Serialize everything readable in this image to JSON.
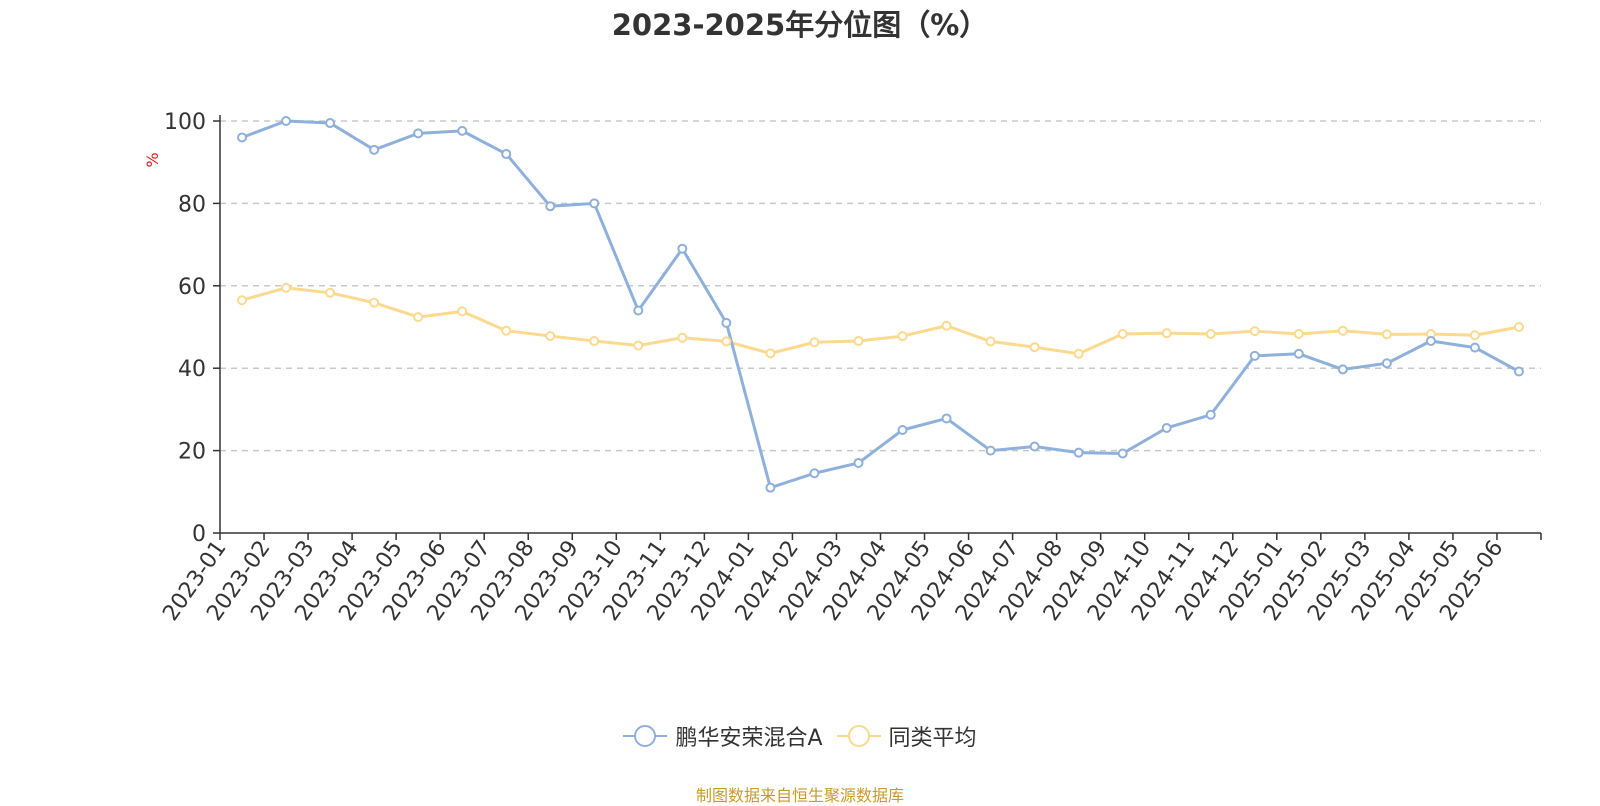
{
  "chart_data": {
    "type": "line",
    "title": "2023-2025年分位图（%）",
    "ylabel": "%",
    "ylim": [
      0,
      100
    ],
    "yticks": [
      0,
      20,
      40,
      60,
      80,
      100
    ],
    "grid": "horizontal dashed",
    "legend_position": "bottom-center",
    "categories": [
      "2023-01",
      "2023-02",
      "2023-03",
      "2023-04",
      "2023-05",
      "2023-06",
      "2023-07",
      "2023-08",
      "2023-09",
      "2023-10",
      "2023-11",
      "2023-12",
      "2024-01",
      "2024-02",
      "2024-03",
      "2024-04",
      "2024-05",
      "2024-06",
      "2024-07",
      "2024-08",
      "2024-09",
      "2024-10",
      "2024-11",
      "2024-12",
      "2025-01",
      "2025-02",
      "2025-03",
      "2025-04",
      "2025-05",
      "2025-06"
    ],
    "series": [
      {
        "name": "鹏华安荣混合A",
        "color": "#8fb0db",
        "values": [
          96,
          100,
          99.5,
          93,
          97,
          97.6,
          92,
          79.3,
          80,
          54,
          69,
          51,
          11,
          14.5,
          17,
          25,
          27.8,
          20,
          21,
          19.5,
          19.3,
          25.5,
          28.7,
          43,
          43.5,
          39.7,
          41.2,
          46.6,
          45,
          39.2
        ]
      },
      {
        "name": "同类平均",
        "color": "#fbd98f",
        "values": [
          56.5,
          59.5,
          58.3,
          55.9,
          52.4,
          53.8,
          49.1,
          47.8,
          46.6,
          45.5,
          47.4,
          46.5,
          43.6,
          46.3,
          46.6,
          47.8,
          50.3,
          46.5,
          45.1,
          43.5,
          48.3,
          48.5,
          48.3,
          49,
          48.3,
          49.1,
          48.2,
          48.3,
          48,
          50
        ]
      }
    ]
  },
  "legend": [
    {
      "label": "鹏华安荣混合A"
    },
    {
      "label": "同类平均"
    }
  ],
  "source_note": "制图数据来自恒生聚源数据库"
}
